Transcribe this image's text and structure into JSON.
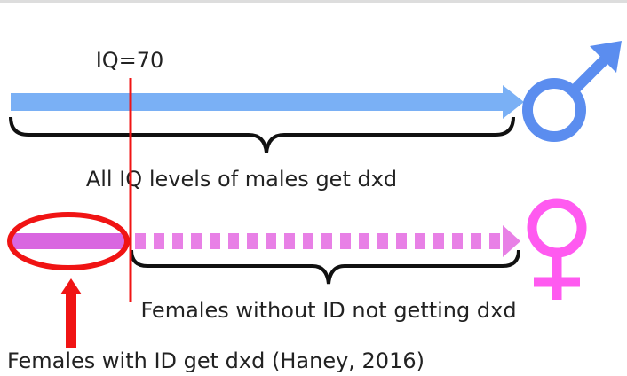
{
  "labels": {
    "iq_threshold": "IQ=70",
    "males": "All IQ levels of males get dxd",
    "females_without_id": "Females without ID not getting dxd",
    "females_with_id": "Females with ID get dxd  (Haney, 2016)"
  }
}
